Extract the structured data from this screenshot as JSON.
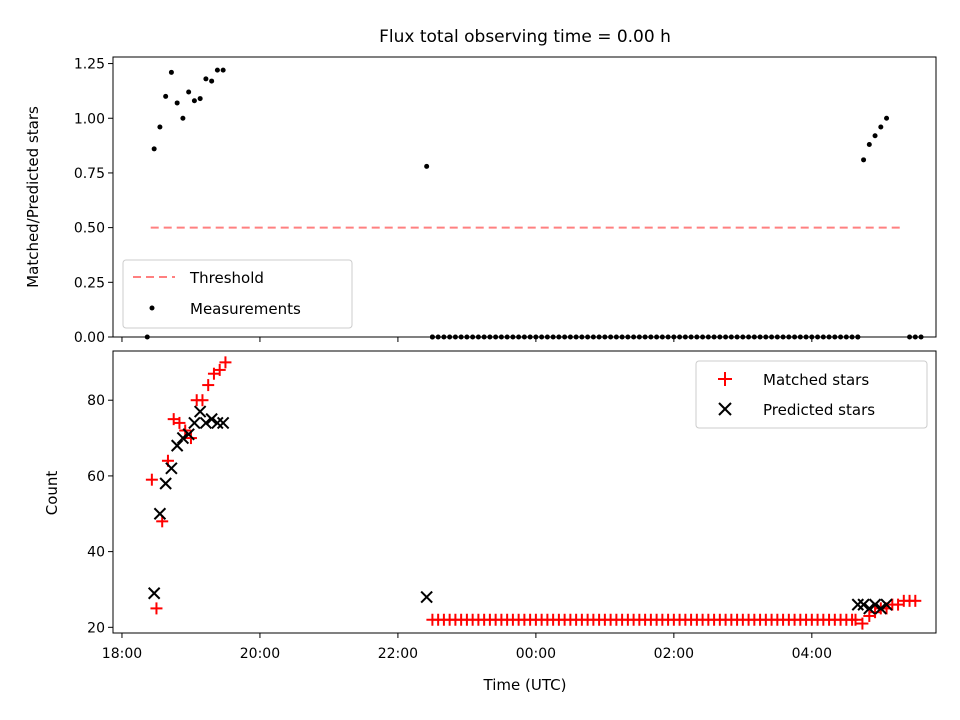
{
  "chart_data": [
    {
      "type": "scatter",
      "title": "Flux total observing time = 0.00 h",
      "xlabel": "",
      "ylabel": "Matched/Predicted stars",
      "xlim": [
        "18:00 -0.13h",
        "05:45"
      ],
      "x_axis_hours_range": [
        17.87,
        29.8
      ],
      "ylim": [
        0,
        1.28
      ],
      "yticks": [
        "0.00",
        "0.25",
        "0.50",
        "0.75",
        "1.00",
        "1.25"
      ],
      "ytick_values": [
        0,
        0.25,
        0.5,
        0.75,
        1.0,
        1.25
      ],
      "legend": "lower-left",
      "threshold": {
        "name": "Threshold",
        "value": 0.5,
        "x_start": "18:25",
        "x_end": "05:20",
        "color": "#ff8080"
      },
      "series": [
        {
          "name": "Measurements",
          "color": "#000000",
          "x": [
            "18:22",
            "18:28",
            "18:33",
            "18:38",
            "18:43",
            "18:48",
            "18:53",
            "18:58",
            "19:03",
            "19:08",
            "19:13",
            "19:18",
            "19:23",
            "19:28",
            "22:25",
            "22:30",
            "04:40",
            "04:45",
            "04:50",
            "04:55",
            "05:00",
            "05:05",
            "05:25",
            "05:30",
            "05:35"
          ],
          "y": [
            0.0,
            0.86,
            0.96,
            1.1,
            1.21,
            1.07,
            1.0,
            1.12,
            1.08,
            1.09,
            1.18,
            1.17,
            1.22,
            1.22,
            0.78,
            0.0,
            0.0,
            0.81,
            0.88,
            0.92,
            0.96,
            1.0,
            0.0,
            0.0,
            0.0
          ]
        }
      ],
      "zero_run": {
        "from": "22:30",
        "to": "04:40",
        "step_minutes": 5,
        "y": 0.0
      }
    },
    {
      "type": "scatter",
      "title": "",
      "xlabel": "Time (UTC)",
      "ylabel": "Count",
      "xticks": [
        "18:00",
        "20:00",
        "22:00",
        "00:00",
        "02:00",
        "04:00"
      ],
      "xtick_hours": [
        18,
        20,
        22,
        24,
        26,
        28
      ],
      "ylim": [
        18.5,
        93
      ],
      "yticks": [
        "20",
        "40",
        "60",
        "80"
      ],
      "ytick_values": [
        20,
        40,
        60,
        80
      ],
      "legend": "top-right",
      "series": [
        {
          "name": "Matched stars",
          "marker": "plus",
          "color": "#ff0000",
          "x": [
            "18:26",
            "18:30",
            "18:35",
            "18:40",
            "18:45",
            "18:50",
            "18:55",
            "19:00",
            "19:05",
            "19:10",
            "19:15",
            "19:20",
            "19:25",
            "19:30",
            "04:38",
            "04:44",
            "04:50",
            "04:55",
            "05:00",
            "05:05",
            "05:10",
            "05:15",
            "05:20",
            "05:25",
            "05:30"
          ],
          "y": [
            59,
            25,
            48,
            64,
            75,
            74,
            72,
            70,
            80,
            80,
            84,
            87,
            88,
            90,
            22,
            21,
            23,
            24,
            25,
            25,
            26,
            26,
            27,
            27,
            27
          ]
        },
        {
          "name": "Predicted stars",
          "marker": "x",
          "color": "#000000",
          "x": [
            "18:28",
            "18:33",
            "18:38",
            "18:43",
            "18:48",
            "18:53",
            "18:58",
            "19:03",
            "19:08",
            "19:13",
            "19:18",
            "19:23",
            "19:28",
            "22:25",
            "04:40",
            "04:45",
            "04:50",
            "04:55",
            "05:00",
            "05:05"
          ],
          "y": [
            29,
            50,
            58,
            62,
            68,
            70,
            71,
            74,
            77,
            74,
            75,
            74,
            74,
            28,
            26,
            26,
            25,
            26,
            25,
            26
          ]
        }
      ],
      "matched_run": {
        "from": "22:30",
        "to": "04:35",
        "step_minutes": 5,
        "y": 22
      }
    }
  ]
}
